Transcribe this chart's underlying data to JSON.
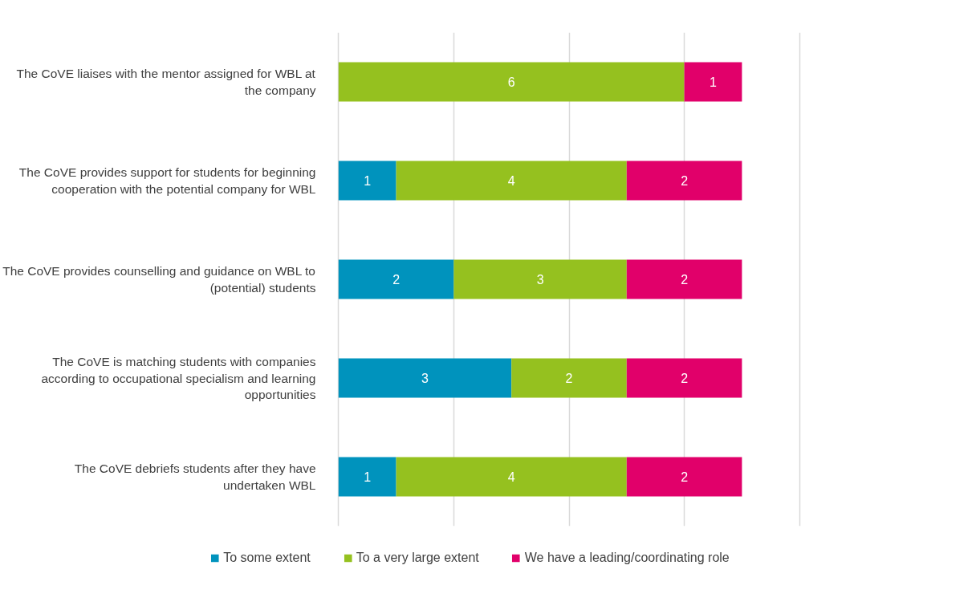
{
  "chart_data": {
    "type": "bar",
    "orientation": "horizontal",
    "stacked": true,
    "data_labels": true,
    "grid": "x",
    "legend": "bottom",
    "tick_labels": "y",
    "categories": [
      "The CoVE liaises with the mentor assigned for WBL at the company",
      "The CoVE provides support for students for beginning cooperation with the potential company for WBL",
      "The CoVE provides counselling and guidance on WBL to (potential) students",
      "The CoVE is matching students with companies according to occupational specialism and learning opportunities",
      "The CoVE debriefs students after they have undertaken WBL"
    ],
    "xlim": [
      0,
      8
    ],
    "xticks": [
      {
        "value": 0,
        "label": null
      },
      {
        "value": 2,
        "label": null
      },
      {
        "value": 4,
        "label": null
      },
      {
        "value": 6,
        "label": null
      },
      {
        "value": 8,
        "label": null
      }
    ],
    "series": [
      {
        "name": "To some extent",
        "color": "#0093bd",
        "values": [
          null,
          1,
          2,
          3,
          1
        ]
      },
      {
        "name": "To a very large extent",
        "color": "#95c11f",
        "values": [
          6,
          4,
          3,
          2,
          4
        ]
      },
      {
        "name": "We have a leading/coordinating role",
        "color": "#e1006a",
        "values": [
          1,
          2,
          2,
          2,
          2
        ]
      }
    ]
  }
}
